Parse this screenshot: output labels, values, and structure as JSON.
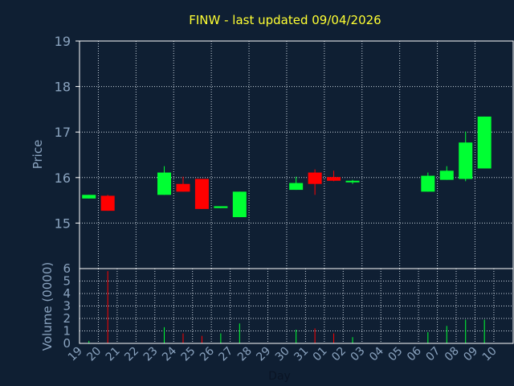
{
  "chart_data": {
    "type": "candlestick",
    "title": "FINW - last updated 09/04/2026",
    "xlabel": "Day",
    "ylabel": "Price",
    "volume_label": "Volume (0000)",
    "x_ticks": [
      "19",
      "20",
      "21",
      "22",
      "23",
      "24",
      "25",
      "26",
      "27",
      "28",
      "29",
      "30",
      "31",
      "01",
      "02",
      "03",
      "04",
      "05",
      "06",
      "07",
      "08",
      "09",
      "10"
    ],
    "price_ticks": [
      15,
      16,
      17,
      18,
      19
    ],
    "volume_ticks": [
      0,
      1,
      2,
      3,
      4,
      5,
      6
    ],
    "price_range": [
      14.0,
      19.0
    ],
    "volume_range": [
      0,
      6
    ],
    "up_color": "#00ff33",
    "down_color": "#ff0000",
    "candles": [
      {
        "day": "19",
        "open": 15.54,
        "high": 15.62,
        "low": 15.54,
        "close": 15.62,
        "volume": 0.2
      },
      {
        "day": "20",
        "open": 15.6,
        "high": 15.62,
        "low": 15.27,
        "close": 15.27,
        "volume": 5.8
      },
      {
        "day": "23",
        "open": 15.62,
        "high": 16.25,
        "low": 15.62,
        "close": 16.11,
        "volume": 1.3
      },
      {
        "day": "24",
        "open": 15.86,
        "high": 16.02,
        "low": 15.69,
        "close": 15.69,
        "volume": 0.8
      },
      {
        "day": "25",
        "open": 15.97,
        "high": 15.97,
        "low": 15.31,
        "close": 15.31,
        "volume": 0.6
      },
      {
        "day": "26",
        "open": 15.33,
        "high": 15.37,
        "low": 15.33,
        "close": 15.37,
        "volume": 0.8
      },
      {
        "day": "27",
        "open": 15.13,
        "high": 15.69,
        "low": 15.13,
        "close": 15.69,
        "volume": 1.6
      },
      {
        "day": "30",
        "open": 15.73,
        "high": 16.02,
        "low": 15.73,
        "close": 15.88,
        "volume": 1.1
      },
      {
        "day": "31",
        "open": 16.11,
        "high": 16.18,
        "low": 15.62,
        "close": 15.86,
        "volume": 1.2
      },
      {
        "day": "01",
        "open": 16.01,
        "high": 16.15,
        "low": 15.92,
        "close": 15.93,
        "volume": 0.8
      },
      {
        "day": "02",
        "open": 15.9,
        "high": 15.95,
        "low": 15.86,
        "close": 15.93,
        "volume": 0.5
      },
      {
        "day": "06",
        "open": 15.69,
        "high": 16.11,
        "low": 15.69,
        "close": 16.04,
        "volume": 0.9
      },
      {
        "day": "07",
        "open": 15.95,
        "high": 16.25,
        "low": 15.95,
        "close": 16.15,
        "volume": 1.4
      },
      {
        "day": "08",
        "open": 15.97,
        "high": 17.01,
        "low": 15.92,
        "close": 16.77,
        "volume": 1.9
      },
      {
        "day": "09",
        "open": 16.2,
        "high": 17.34,
        "low": 16.2,
        "close": 17.34,
        "volume": 1.9
      }
    ]
  }
}
